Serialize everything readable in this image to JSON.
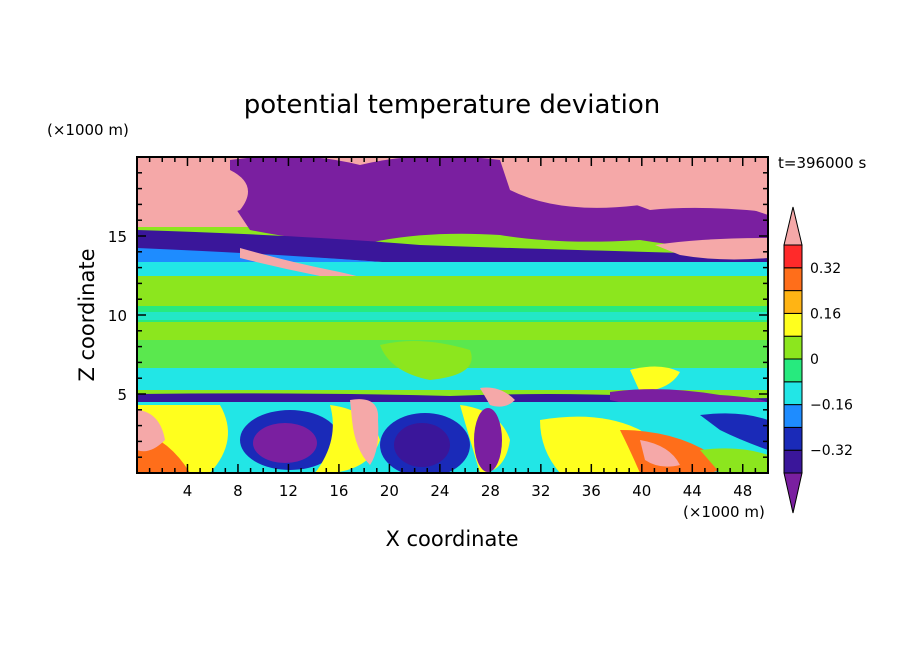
{
  "chart_data": {
    "type": "heatmap",
    "title": "potential temperature deviation",
    "time_label": "t=396000 s",
    "xlabel": "X coordinate",
    "ylabel": "Z coordinate",
    "x_unit": "(×1000 m)",
    "y_unit": "(×1000 m)",
    "xlim": [
      0,
      50
    ],
    "ylim": [
      0,
      20
    ],
    "x_ticks": [
      4,
      8,
      12,
      16,
      20,
      24,
      28,
      32,
      36,
      40,
      44,
      48
    ],
    "y_ticks": [
      5,
      10,
      15
    ],
    "colorbar": {
      "levels": [
        -0.4,
        -0.32,
        -0.24,
        -0.16,
        -0.08,
        0,
        0.08,
        0.16,
        0.24,
        0.32,
        0.4
      ],
      "labels": [
        "0.32",
        "0.16",
        "0",
        "−0.16",
        "−0.32"
      ],
      "label_values": [
        0.32,
        0.16,
        0,
        -0.16,
        -0.32
      ],
      "colors": [
        "#7a1fa0",
        "#3a169a",
        "#1a2ab8",
        "#1e8cff",
        "#22e6e6",
        "#27ea7e",
        "#8ce61e",
        "#ffff1e",
        "#ffb414",
        "#ff6e1a",
        "#ff2a2a",
        "#f5a8a8"
      ],
      "extend": "both"
    },
    "layers": [
      {
        "z": [
          0,
          4.8
        ],
        "description": "lower turbulent layer, mixed anomalies"
      },
      {
        "z": [
          4.8,
          5.2
        ],
        "value": -0.4
      },
      {
        "z": [
          5.2,
          13
        ],
        "value": 0.0
      },
      {
        "z": [
          13,
          17
        ],
        "value": -0.35
      },
      {
        "z": [
          17,
          20
        ],
        "value": -0.45
      }
    ]
  }
}
